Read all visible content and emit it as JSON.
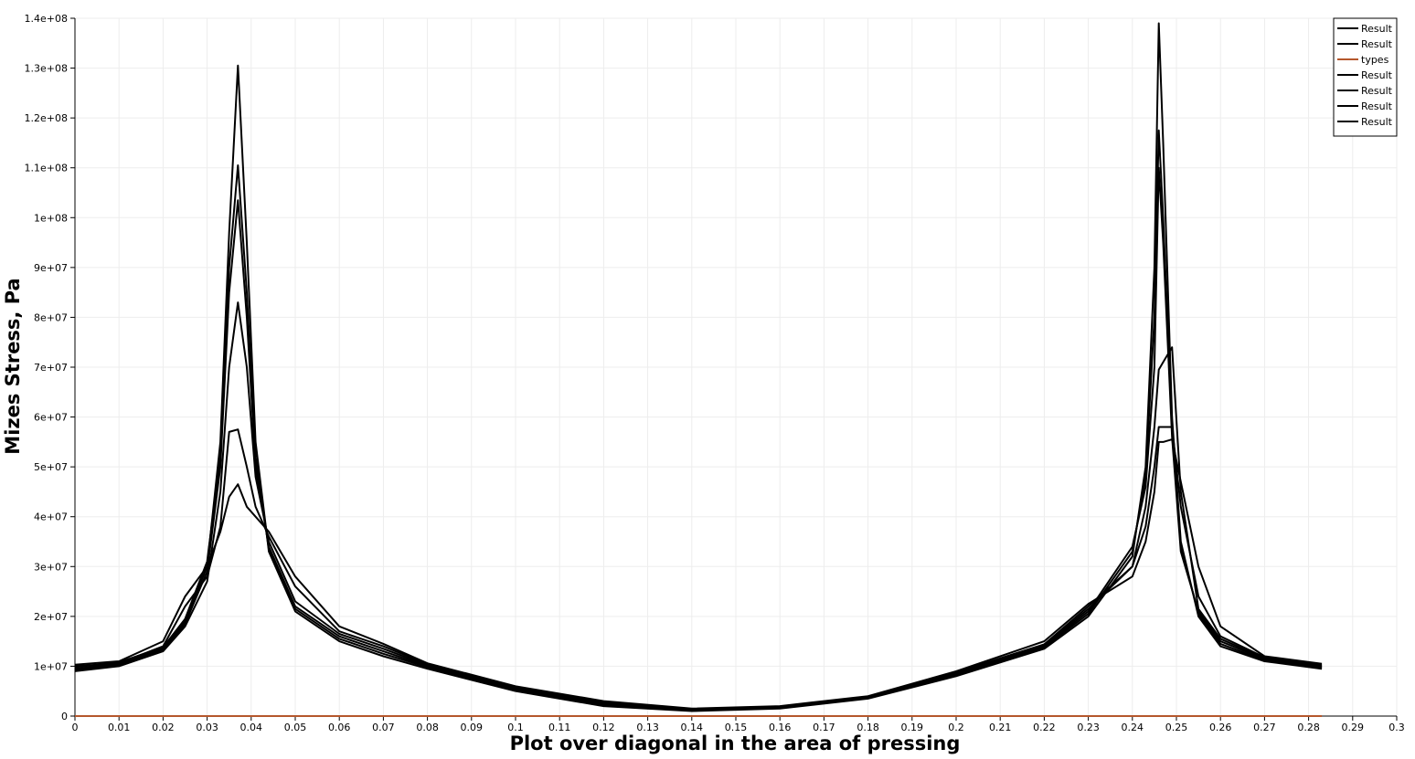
{
  "chart_data": {
    "type": "line",
    "title": "",
    "xlabel": "Plot over diagonal in the area of pressing",
    "ylabel": "Mizes Stress, Pa",
    "xlim": [
      0,
      0.3
    ],
    "ylim": [
      0,
      140000000
    ],
    "x_ticks": [
      "0",
      "0.01",
      "0.02",
      "0.03",
      "0.04",
      "0.05",
      "0.06",
      "0.07",
      "0.08",
      "0.09",
      "0.1",
      "0.11",
      "0.12",
      "0.13",
      "0.14",
      "0.15",
      "0.16",
      "0.17",
      "0.18",
      "0.19",
      "0.2",
      "0.21",
      "0.22",
      "0.23",
      "0.24",
      "0.25",
      "0.26",
      "0.27",
      "0.28",
      "0.29",
      "0.3"
    ],
    "y_ticks": [
      "0",
      "1e+07",
      "2e+07",
      "3e+07",
      "4e+07",
      "5e+07",
      "6e+07",
      "7e+07",
      "8e+07",
      "9e+07",
      "1e+08",
      "1.1e+08",
      "1.2e+08",
      "1.3e+08",
      "1.4e+08"
    ],
    "grid": true,
    "legend_position": "top-right",
    "series": [
      {
        "name": "Result",
        "color": "#000000",
        "x": [
          0,
          0.01,
          0.02,
          0.025,
          0.03,
          0.033,
          0.035,
          0.037,
          0.039,
          0.041,
          0.044,
          0.05,
          0.06,
          0.07,
          0.08,
          0.1,
          0.12,
          0.14,
          0.16,
          0.18,
          0.2,
          0.22,
          0.23,
          0.24,
          0.243,
          0.245,
          0.246,
          0.247,
          0.249,
          0.251,
          0.255,
          0.26,
          0.27,
          0.283
        ],
        "y": [
          9500000,
          10500000,
          13500000,
          19000000,
          30000000,
          55000000,
          97000000,
          130500000,
          95000000,
          55000000,
          33000000,
          21000000,
          15000000,
          12000000,
          9500000,
          5000000,
          2000000,
          1000000,
          1500000,
          3500000,
          8000000,
          13500000,
          20000000,
          32000000,
          50000000,
          90000000,
          139000000,
          115000000,
          60000000,
          35000000,
          20000000,
          14000000,
          11000000,
          9500000
        ]
      },
      {
        "name": "Result",
        "color": "#000000",
        "x": [
          0,
          0.01,
          0.02,
          0.025,
          0.03,
          0.033,
          0.035,
          0.037,
          0.039,
          0.041,
          0.044,
          0.05,
          0.06,
          0.07,
          0.08,
          0.1,
          0.12,
          0.14,
          0.16,
          0.18,
          0.2,
          0.22,
          0.23,
          0.24,
          0.243,
          0.245,
          0.246,
          0.247,
          0.249,
          0.251,
          0.255,
          0.26,
          0.27,
          0.283
        ],
        "y": [
          9800000,
          10800000,
          13800000,
          19500000,
          31000000,
          52000000,
          90000000,
          110500000,
          85000000,
          52000000,
          33500000,
          21500000,
          15500000,
          12500000,
          9800000,
          5200000,
          2200000,
          1100000,
          1600000,
          3600000,
          8200000,
          13800000,
          20500000,
          33000000,
          48000000,
          80000000,
          117500000,
          100000000,
          58000000,
          34000000,
          20500000,
          14500000,
          11200000,
          9700000
        ]
      },
      {
        "name": "types",
        "color": "#b5572c",
        "x": [
          0,
          0.283
        ],
        "y": [
          0,
          0
        ]
      },
      {
        "name": "Result",
        "color": "#000000",
        "x": [
          0,
          0.01,
          0.02,
          0.025,
          0.03,
          0.033,
          0.035,
          0.037,
          0.039,
          0.041,
          0.044,
          0.05,
          0.06,
          0.07,
          0.08,
          0.1,
          0.12,
          0.14,
          0.16,
          0.18,
          0.2,
          0.22,
          0.23,
          0.24,
          0.243,
          0.245,
          0.246,
          0.247,
          0.249,
          0.251,
          0.255,
          0.26,
          0.27,
          0.283
        ],
        "y": [
          9200000,
          10200000,
          13200000,
          18500000,
          29000000,
          50000000,
          85000000,
          103500000,
          80000000,
          50000000,
          34000000,
          22000000,
          16000000,
          13000000,
          10000000,
          5400000,
          2400000,
          1200000,
          1700000,
          3700000,
          8400000,
          14000000,
          21000000,
          34000000,
          46000000,
          70000000,
          110000000,
          95000000,
          56000000,
          33000000,
          21000000,
          15000000,
          11400000,
          9900000
        ]
      },
      {
        "name": "Result",
        "color": "#000000",
        "x": [
          0,
          0.01,
          0.02,
          0.025,
          0.03,
          0.033,
          0.035,
          0.037,
          0.039,
          0.041,
          0.044,
          0.05,
          0.06,
          0.07,
          0.08,
          0.1,
          0.12,
          0.14,
          0.16,
          0.18,
          0.2,
          0.22,
          0.23,
          0.24,
          0.243,
          0.245,
          0.246,
          0.247,
          0.249,
          0.251,
          0.255,
          0.26,
          0.27,
          0.283
        ],
        "y": [
          9000000,
          10000000,
          13000000,
          18000000,
          27000000,
          45000000,
          70000000,
          83000000,
          70000000,
          48000000,
          35000000,
          23000000,
          16500000,
          13500000,
          10200000,
          5600000,
          2600000,
          1300000,
          1800000,
          3800000,
          8600000,
          14200000,
          21500000,
          30000000,
          42000000,
          58000000,
          69500000,
          71000000,
          74000000,
          45000000,
          21500000,
          15500000,
          11600000,
          10000000
        ]
      },
      {
        "name": "Result",
        "color": "#000000",
        "x": [
          0,
          0.01,
          0.02,
          0.025,
          0.03,
          0.033,
          0.035,
          0.037,
          0.039,
          0.041,
          0.044,
          0.05,
          0.06,
          0.07,
          0.08,
          0.1,
          0.12,
          0.14,
          0.16,
          0.18,
          0.2,
          0.22,
          0.23,
          0.24,
          0.243,
          0.245,
          0.246,
          0.247,
          0.249,
          0.251,
          0.255,
          0.26,
          0.27,
          0.283
        ],
        "y": [
          10000000,
          10600000,
          14000000,
          22000000,
          28000000,
          38000000,
          57000000,
          57500000,
          50000000,
          42000000,
          36000000,
          26000000,
          17000000,
          14000000,
          10400000,
          5800000,
          2800000,
          1400000,
          1900000,
          3900000,
          8800000,
          14400000,
          22000000,
          30000000,
          38000000,
          50000000,
          58000000,
          58000000,
          58000000,
          42000000,
          24000000,
          16000000,
          11800000,
          10200000
        ]
      },
      {
        "name": "Result",
        "color": "#000000",
        "x": [
          0,
          0.01,
          0.02,
          0.025,
          0.03,
          0.033,
          0.035,
          0.037,
          0.039,
          0.041,
          0.044,
          0.05,
          0.06,
          0.07,
          0.08,
          0.1,
          0.12,
          0.14,
          0.16,
          0.18,
          0.2,
          0.22,
          0.23,
          0.24,
          0.243,
          0.245,
          0.246,
          0.247,
          0.249,
          0.251,
          0.255,
          0.26,
          0.27,
          0.283
        ],
        "y": [
          10300000,
          11000000,
          15000000,
          24000000,
          30000000,
          37000000,
          44000000,
          46500000,
          42000000,
          40000000,
          37000000,
          28000000,
          18000000,
          14500000,
          10600000,
          6000000,
          3000000,
          1500000,
          2000000,
          4000000,
          9000000,
          15000000,
          22500000,
          28000000,
          35000000,
          45000000,
          55000000,
          55000000,
          55500000,
          47000000,
          30000000,
          18000000,
          12000000,
          10500000
        ]
      }
    ]
  }
}
